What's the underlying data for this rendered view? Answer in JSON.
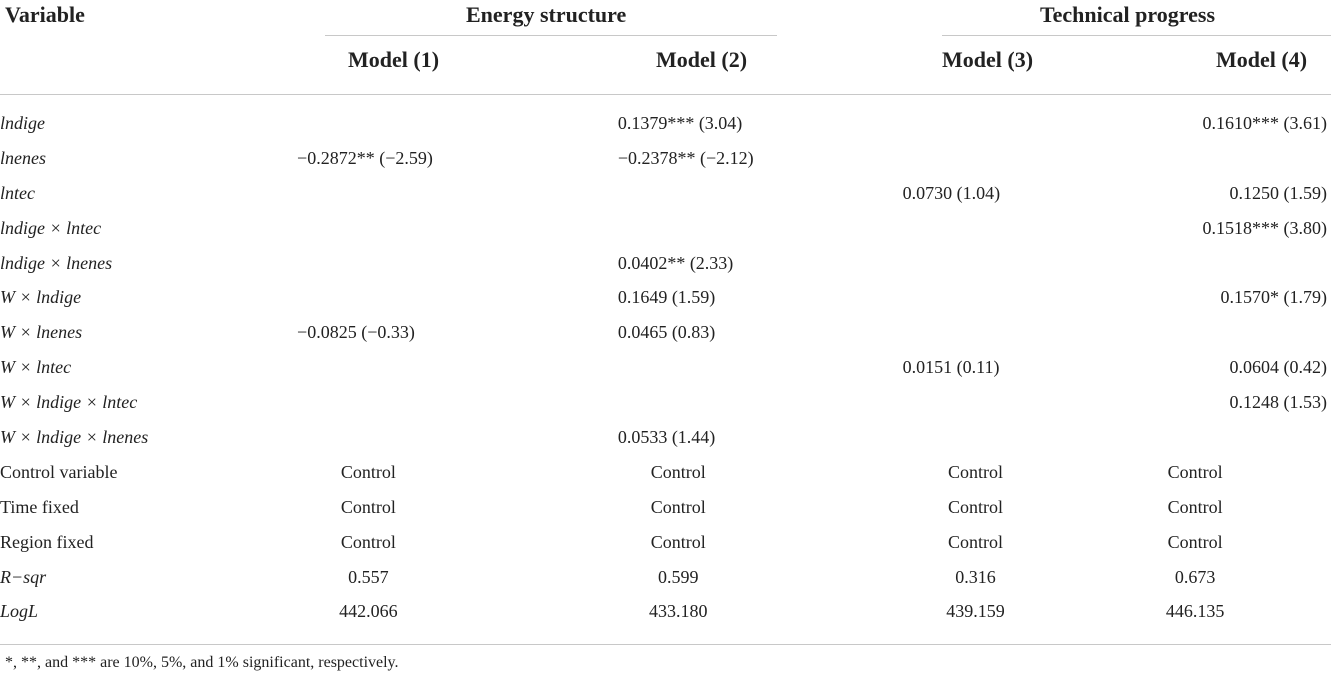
{
  "header": {
    "variable": "Variable",
    "group1": "Energy structure",
    "group2": "Technical progress",
    "models": [
      "Model (1)",
      "Model (2)",
      "Model (3)",
      "Model (4)"
    ]
  },
  "rows": [
    {
      "label": "lndige",
      "italic": true,
      "cells": [
        "",
        "0.1379*** (3.04)",
        "",
        "0.1610*** (3.61)"
      ]
    },
    {
      "label": "lnenes",
      "italic": true,
      "cells": [
        "−0.2872** (−2.59)",
        "−0.2378** (−2.12)",
        "",
        ""
      ]
    },
    {
      "label": "lntec",
      "italic": true,
      "cells": [
        "",
        "",
        "0.0730 (1.04)",
        "0.1250 (1.59)"
      ]
    },
    {
      "label": "lndige × lntec",
      "italic": true,
      "cells": [
        "",
        "",
        "",
        "0.1518*** (3.80)"
      ]
    },
    {
      "label": "lndige × lnenes",
      "italic": true,
      "cells": [
        "",
        "0.0402** (2.33)",
        "",
        ""
      ]
    },
    {
      "label": "W × lndige",
      "italic": true,
      "cells": [
        "",
        "0.1649 (1.59)",
        "",
        "0.1570* (1.79)"
      ]
    },
    {
      "label": "W × lnenes",
      "italic": true,
      "cells": [
        "−0.0825 (−0.33)",
        "0.0465 (0.83)",
        "",
        ""
      ]
    },
    {
      "label": "W × lntec",
      "italic": true,
      "cells": [
        "",
        "",
        "0.0151 (0.11)",
        "0.0604 (0.42)"
      ]
    },
    {
      "label": "W × lndige × lntec",
      "italic": true,
      "cells": [
        "",
        "",
        "",
        "0.1248 (1.53)"
      ]
    },
    {
      "label": "W × lndige × lnenes",
      "italic": true,
      "cells": [
        "",
        "0.0533 (1.44)",
        "",
        ""
      ]
    },
    {
      "label": "Control variable",
      "italic": false,
      "cells": [
        "Control",
        "Control",
        "Control",
        "Control"
      ]
    },
    {
      "label": "Time fixed",
      "italic": false,
      "cells": [
        "Control",
        "Control",
        "Control",
        "Control"
      ]
    },
    {
      "label": "Region fixed",
      "italic": false,
      "cells": [
        "Control",
        "Control",
        "Control",
        "Control"
      ]
    },
    {
      "label": "R−sqr",
      "italic": true,
      "cells": [
        "0.557",
        "0.599",
        "0.316",
        "0.673"
      ]
    },
    {
      "label": "LogL",
      "italic": true,
      "cells": [
        "442.066",
        "433.180",
        "439.159",
        "446.135"
      ]
    }
  ],
  "footnote": "*, **, and *** are 10%, 5%, and 1% significant, respectively."
}
